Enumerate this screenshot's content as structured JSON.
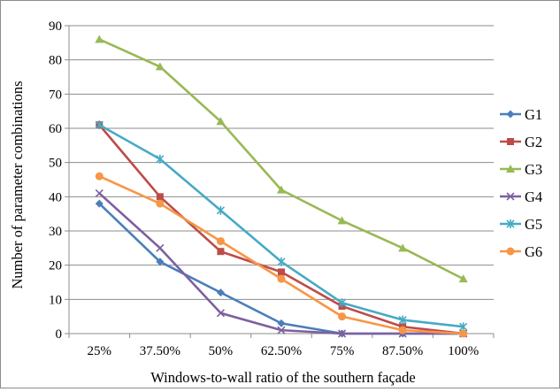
{
  "chart_data": {
    "type": "line",
    "xlabel": "Windows-to-wall ratio of the southern façade",
    "ylabel": "Number of parameter combinations",
    "categories": [
      "25%",
      "37.50%",
      "50%",
      "62.50%",
      "75%",
      "87.50%",
      "100%"
    ],
    "ylim": [
      0,
      90
    ],
    "yticks": [
      "0",
      "10",
      "20",
      "30",
      "40",
      "50",
      "60",
      "70",
      "80",
      "90"
    ],
    "grid": true,
    "legend_position": "right",
    "series": [
      {
        "name": "G1",
        "color": "#4a7ebb",
        "marker": "diamond",
        "values": [
          38,
          21,
          12,
          3,
          0,
          0,
          0
        ]
      },
      {
        "name": "G2",
        "color": "#be4b48",
        "marker": "square",
        "values": [
          61,
          40,
          24,
          18,
          8,
          2,
          0
        ]
      },
      {
        "name": "G3",
        "color": "#98b954",
        "marker": "triangle",
        "values": [
          86,
          78,
          62,
          42,
          33,
          25,
          16
        ]
      },
      {
        "name": "G4",
        "color": "#7d60a0",
        "marker": "x",
        "values": [
          41,
          25,
          6,
          1,
          0,
          0,
          0
        ]
      },
      {
        "name": "G5",
        "color": "#46aac5",
        "marker": "star",
        "values": [
          61,
          51,
          36,
          21,
          9,
          4,
          2
        ]
      },
      {
        "name": "G6",
        "color": "#f79646",
        "marker": "circle",
        "values": [
          46,
          38,
          27,
          16,
          5,
          1,
          0
        ]
      }
    ]
  }
}
